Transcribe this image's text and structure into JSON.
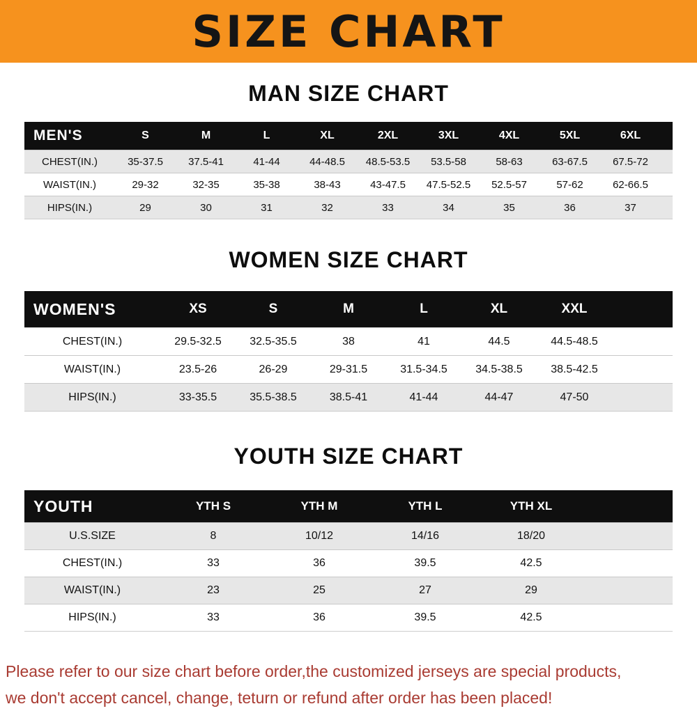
{
  "banner": {
    "title": "SIZE CHART"
  },
  "colors": {
    "banner_bg": "#F6921E",
    "table_header_bg": "#0f0f0f",
    "row_stripe": "#e7e7e7",
    "footer_text": "#A93B32"
  },
  "chart_data": [
    {
      "type": "table",
      "title": "MAN SIZE CHART",
      "row_header": "MEN'S",
      "columns": [
        "S",
        "M",
        "L",
        "XL",
        "2XL",
        "3XL",
        "4XL",
        "5XL",
        "6XL"
      ],
      "rows": [
        {
          "label": "CHEST(IN.)",
          "values": [
            "35-37.5",
            "37.5-41",
            "41-44",
            "44-48.5",
            "48.5-53.5",
            "53.5-58",
            "58-63",
            "63-67.5",
            "67.5-72"
          ]
        },
        {
          "label": "WAIST(IN.)",
          "values": [
            "29-32",
            "32-35",
            "35-38",
            "38-43",
            "43-47.5",
            "47.5-52.5",
            "52.5-57",
            "57-62",
            "62-66.5"
          ]
        },
        {
          "label": "HIPS(IN.)",
          "values": [
            "29",
            "30",
            "31",
            "32",
            "33",
            "34",
            "35",
            "36",
            "37"
          ]
        }
      ]
    },
    {
      "type": "table",
      "title": "WOMEN SIZE CHART",
      "row_header": "WOMEN'S",
      "columns": [
        "XS",
        "S",
        "M",
        "L",
        "XL",
        "XXL"
      ],
      "rows": [
        {
          "label": "CHEST(IN.)",
          "values": [
            "29.5-32.5",
            "32.5-35.5",
            "38",
            "41",
            "44.5",
            "44.5-48.5"
          ]
        },
        {
          "label": "WAIST(IN.)",
          "values": [
            "23.5-26",
            "26-29",
            "29-31.5",
            "31.5-34.5",
            "34.5-38.5",
            "38.5-42.5"
          ]
        },
        {
          "label": "HIPS(IN.)",
          "values": [
            "33-35.5",
            "35.5-38.5",
            "38.5-41",
            "41-44",
            "44-47",
            "47-50"
          ]
        }
      ]
    },
    {
      "type": "table",
      "title": "YOUTH SIZE CHART",
      "row_header": "YOUTH",
      "columns": [
        "YTH S",
        "YTH M",
        "YTH L",
        "YTH XL"
      ],
      "rows": [
        {
          "label": "U.S.SIZE",
          "values": [
            "8",
            "10/12",
            "14/16",
            "18/20"
          ]
        },
        {
          "label": "CHEST(IN.)",
          "values": [
            "33",
            "36",
            "39.5",
            "42.5"
          ]
        },
        {
          "label": "WAIST(IN.)",
          "values": [
            "23",
            "25",
            "27",
            "29"
          ]
        },
        {
          "label": "HIPS(IN.)",
          "values": [
            "33",
            "36",
            "39.5",
            "42.5"
          ]
        }
      ]
    }
  ],
  "footer": {
    "line1": "Please refer to our size chart before order,the customized jerseys are special products,",
    "line2": "we don't accept cancel, change, teturn or refund after order has been placed!"
  }
}
